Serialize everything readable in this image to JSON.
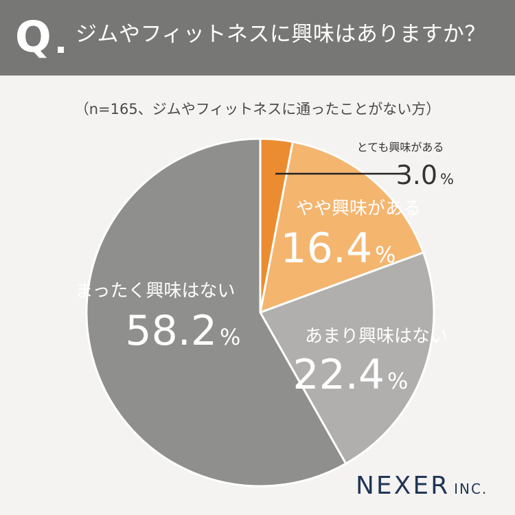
{
  "header": {
    "q_mark": "Q",
    "question": "ジムやフィットネスに興味はありますか？"
  },
  "sample_note": "（n=165、ジムやフィットネスに通ったことがない方）",
  "brand": {
    "name": "NEXER",
    "suffix": "INC."
  },
  "colors": {
    "header_bg": "#777775",
    "page_bg": "#f4f3f1",
    "brand": "#1f3556"
  },
  "chart_data": {
    "type": "pie",
    "unit": "%",
    "slices": [
      {
        "label": "とても興味がある",
        "value": 3.0,
        "display": "3.0",
        "color": "#ec8c30"
      },
      {
        "label": "やや興味がある",
        "value": 16.4,
        "display": "16.4",
        "color": "#f4b56f"
      },
      {
        "label": "あまり興味はない",
        "value": 22.4,
        "display": "22.4",
        "color": "#b1afae"
      },
      {
        "label": "まったく興味はない",
        "value": 58.2,
        "display": "58.2",
        "color": "#8f8f8e"
      }
    ]
  }
}
